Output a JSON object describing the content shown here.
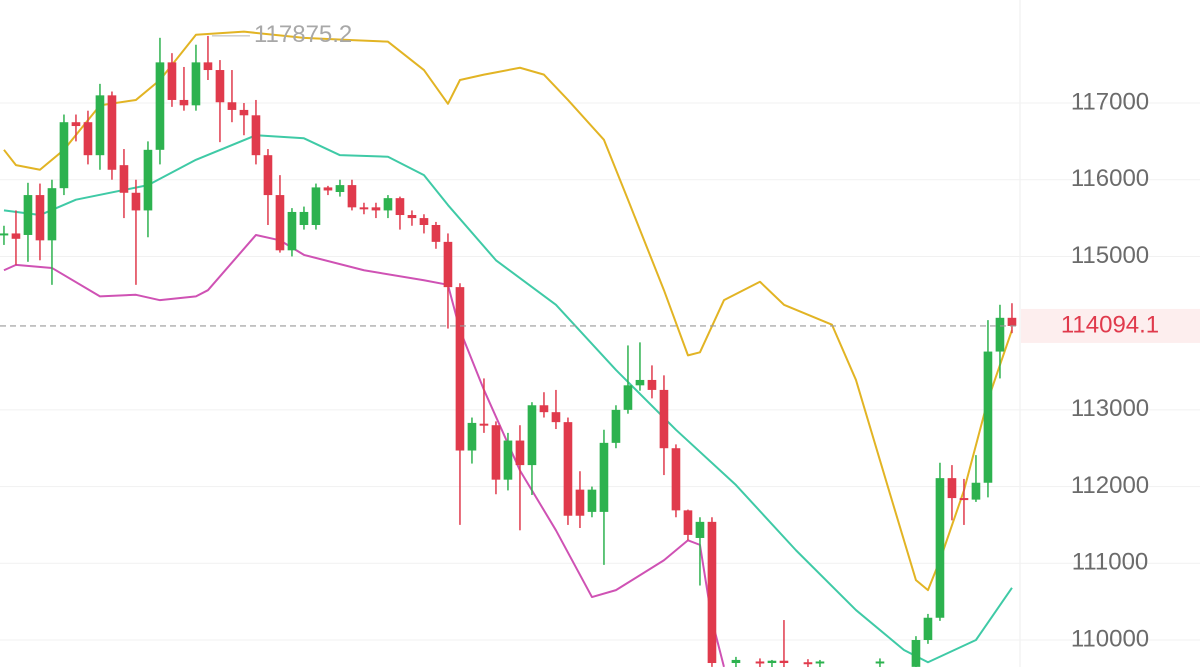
{
  "chart_data": {
    "type": "candlestick",
    "xlim": [
      -0.33,
      84.67
    ],
    "ylim": [
      109648,
      118343
    ],
    "yticks": [
      110000,
      111000,
      112000,
      113000,
      115000,
      116000,
      117000
    ],
    "grid": true,
    "up_color": "#2db24f",
    "down_color": "#e03a4c",
    "max_label": 117875.2,
    "last_price": 114094.1,
    "candles": {
      "x": [
        0,
        1,
        2,
        3,
        4,
        5,
        6,
        7,
        8,
        9,
        10,
        11,
        12,
        13,
        14,
        15,
        16,
        17,
        18,
        19,
        20,
        21,
        22,
        23,
        24,
        25,
        26,
        27,
        28,
        29,
        30,
        31,
        32,
        33,
        34,
        35,
        36,
        37,
        38,
        39,
        40,
        41,
        42,
        43,
        44,
        45,
        46,
        47,
        48,
        49,
        50,
        51,
        52,
        53,
        54,
        55,
        56,
        57,
        58,
        59,
        61,
        63,
        64,
        65,
        67,
        68,
        73,
        76,
        77,
        78,
        79,
        80,
        81,
        82,
        83,
        84
      ],
      "open": [
        115280,
        115300,
        115280,
        115800,
        115210,
        115890,
        116750,
        116750,
        116320,
        117100,
        116190,
        115830,
        115600,
        116390,
        117530,
        117040,
        116970,
        117530,
        117430,
        117010,
        116910,
        116840,
        116320,
        115800,
        115080,
        115410,
        115410,
        115900,
        115840,
        115930,
        115640,
        115640,
        115600,
        115760,
        115540,
        115500,
        115410,
        115190,
        114600,
        112470,
        112820,
        112800,
        112090,
        112600,
        112280,
        113060,
        112970,
        112840,
        111960,
        111670,
        111670,
        112570,
        113000,
        113320,
        113390,
        113260,
        112500,
        111690,
        111330,
        111540,
        109700,
        109720,
        109700,
        109730,
        109710,
        109700,
        109700,
        109650,
        110000,
        110290,
        112110,
        111850,
        111830,
        112050,
        113760,
        114200
      ],
      "high": [
        115400,
        115600,
        115960,
        115950,
        116000,
        116850,
        116850,
        116900,
        117250,
        117150,
        116400,
        116000,
        116500,
        117850,
        117650,
        117470,
        117760,
        117875.2,
        117560,
        117430,
        117000,
        117040,
        116400,
        116060,
        115630,
        115650,
        115950,
        115920,
        116000,
        116000,
        115700,
        115700,
        115800,
        115780,
        115600,
        115550,
        115450,
        115300,
        114650,
        112900,
        113410,
        112850,
        112700,
        112800,
        113100,
        113230,
        113260,
        112900,
        112200,
        112000,
        112740,
        113060,
        113840,
        113880,
        113580,
        113450,
        112550,
        111700,
        111600,
        111600,
        109780,
        109760,
        109740,
        110260,
        109750,
        109740,
        109760,
        110050,
        110340,
        112310,
        112280,
        112100,
        112410,
        114170,
        114370,
        114390
      ],
      "low": [
        115150,
        114890,
        114930,
        114950,
        114630,
        115800,
        116500,
        116200,
        116130,
        116000,
        115500,
        114630,
        115250,
        116200,
        116950,
        116900,
        116900,
        117300,
        116490,
        116750,
        116580,
        116200,
        115410,
        115050,
        115000,
        115350,
        115350,
        115800,
        115780,
        115600,
        115550,
        115500,
        115500,
        115350,
        115400,
        115300,
        115100,
        114060,
        111500,
        112300,
        112700,
        111900,
        111950,
        111430,
        111890,
        112900,
        112750,
        111500,
        111460,
        111600,
        110980,
        112500,
        112950,
        113250,
        113150,
        112150,
        111600,
        111300,
        110710,
        109650,
        109600,
        109600,
        109600,
        109600,
        109600,
        109600,
        109600,
        109600,
        109950,
        110250,
        111560,
        111500,
        111800,
        111860,
        113410,
        114000
      ],
      "close": [
        115300,
        115230,
        115800,
        115210,
        115890,
        116750,
        116700,
        116320,
        117100,
        116130,
        115830,
        115600,
        116390,
        117530,
        117040,
        116970,
        117530,
        117430,
        117010,
        116910,
        116840,
        116320,
        115800,
        115080,
        115580,
        115580,
        115900,
        115860,
        115930,
        115640,
        115630,
        115600,
        115760,
        115540,
        115500,
        115410,
        115190,
        114600,
        112470,
        112830,
        112800,
        112090,
        112600,
        112280,
        113060,
        112970,
        112840,
        111620,
        111620,
        111960,
        112570,
        113000,
        113320,
        113390,
        113260,
        112500,
        111690,
        111370,
        111540,
        109700,
        109740,
        109700,
        109730,
        109700,
        109700,
        109720,
        109720,
        110000,
        110290,
        112110,
        111850,
        111830,
        112050,
        113760,
        114200,
        114094.1
      ]
    },
    "series": [
      {
        "color": "#e2b424",
        "x": [
          0,
          1,
          3,
          5,
          8,
          11,
          13,
          16,
          20,
          25,
          29,
          32,
          35,
          37,
          38,
          40,
          41,
          43,
          45,
          47,
          50,
          52,
          55,
          57,
          58,
          60,
          63,
          65,
          69,
          71,
          74,
          76,
          77,
          78,
          80,
          82,
          84
        ],
        "values": [
          116390,
          116190,
          116130,
          116390,
          116970,
          117040,
          117300,
          117890,
          117930,
          117850,
          117820,
          117800,
          117430,
          116990,
          117300,
          117370,
          117400,
          117460,
          117370,
          117040,
          116520,
          115740,
          114560,
          113710,
          113750,
          114430,
          114670,
          114370,
          114110,
          113390,
          111820,
          110780,
          110650,
          111040,
          111950,
          113130,
          114040
        ]
      },
      {
        "color": "#3fcaa6",
        "x": [
          0,
          3,
          6,
          12,
          16,
          21,
          25,
          28,
          32,
          35,
          37,
          41,
          46,
          51,
          56,
          61,
          66,
          71,
          75,
          77,
          81,
          84
        ],
        "values": [
          115600,
          115540,
          115740,
          115930,
          116260,
          116580,
          116540,
          116320,
          116300,
          116060,
          115670,
          114950,
          114370,
          113520,
          112740,
          112020,
          111170,
          110390,
          109870,
          109710,
          110000,
          110680
        ]
      },
      {
        "color": "#cf52b4",
        "x": [
          0,
          1,
          4,
          8,
          11,
          13,
          16,
          17,
          21,
          23,
          25,
          30,
          35,
          37,
          38,
          40,
          43,
          46,
          49,
          51,
          55,
          57,
          58,
          59,
          60
        ],
        "values": [
          114820,
          114890,
          114850,
          114480,
          114500,
          114430,
          114480,
          114560,
          115280,
          115210,
          115020,
          114820,
          114690,
          114630,
          114040,
          113260,
          112210,
          111430,
          110560,
          110650,
          111040,
          111300,
          111240,
          110260,
          109650
        ]
      }
    ]
  }
}
